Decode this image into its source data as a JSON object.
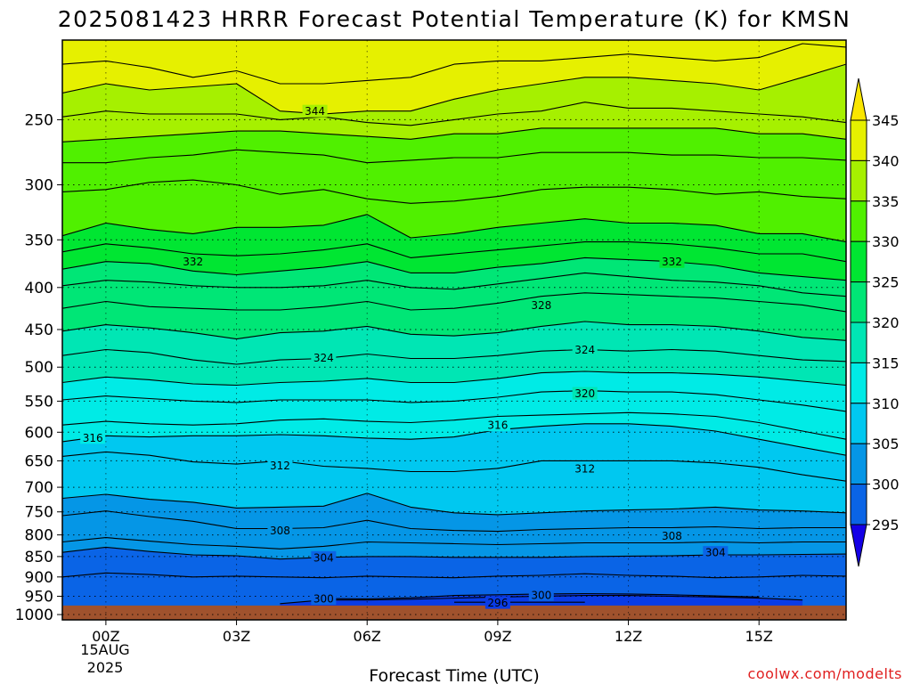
{
  "chart_data": {
    "type": "contour-cross-section",
    "title": "2025081423 HRRR Forecast Potential Temperature (K) for KMSN",
    "xlabel": "Forecast Time (UTC)",
    "x_tick_labels": [
      "00Z",
      "03Z",
      "06Z",
      "09Z",
      "12Z",
      "15Z"
    ],
    "x_tick_hours": [
      0,
      3,
      6,
      9,
      12,
      15
    ],
    "x_date_label": "15AUG",
    "x_year_label": "2025",
    "xlim_hours": [
      -1,
      17
    ],
    "y_tick_labels": [
      "250",
      "300",
      "350",
      "400",
      "450",
      "500",
      "550",
      "600",
      "650",
      "700",
      "750",
      "800",
      "850",
      "900",
      "950",
      "1000"
    ],
    "y_ticks_hpa": [
      250,
      300,
      350,
      400,
      450,
      500,
      550,
      600,
      650,
      700,
      750,
      800,
      850,
      900,
      950,
      1000
    ],
    "ylim_hpa": [
      200,
      1015
    ],
    "y_scale": "log-pressure, inverted",
    "surface_pressure_hpa": 975,
    "contour_interval_K": 2,
    "hours": [
      -1,
      0,
      1,
      2,
      3,
      4,
      5,
      6,
      7,
      8,
      9,
      10,
      11,
      12,
      13,
      14,
      15,
      16,
      17
    ],
    "isentrope_levels_K": [
      296,
      298,
      300,
      302,
      304,
      306,
      308,
      310,
      312,
      314,
      316,
      318,
      320,
      322,
      324,
      326,
      328,
      330,
      332,
      334,
      336,
      338,
      340,
      342,
      344,
      346
    ],
    "isentrope_pressure_hpa": [
      [
        null,
        null,
        null,
        null,
        null,
        null,
        null,
        null,
        null,
        966,
        966,
        966,
        966,
        null,
        null,
        null,
        null,
        null,
        null
      ],
      [
        null,
        null,
        null,
        null,
        null,
        null,
        956,
        957,
        954,
        948,
        946,
        944,
        943,
        944,
        946,
        949,
        952,
        null,
        null
      ],
      [
        null,
        null,
        null,
        null,
        null,
        970,
        960,
        960,
        958,
        955,
        952,
        950,
        948,
        948,
        950,
        952,
        955,
        960,
        null
      ],
      [
        900,
        890,
        894,
        900,
        898,
        900,
        902,
        898,
        900,
        902,
        898,
        896,
        892,
        896,
        898,
        902,
        900,
        896,
        898
      ],
      [
        840,
        828,
        838,
        846,
        848,
        856,
        852,
        850,
        850,
        852,
        852,
        852,
        850,
        849,
        848,
        846,
        846,
        845,
        844
      ],
      [
        816,
        806,
        814,
        822,
        826,
        832,
        826,
        816,
        818,
        820,
        822,
        820,
        818,
        818,
        818,
        816,
        818,
        816,
        816
      ],
      [
        758,
        748,
        760,
        770,
        786,
        786,
        784,
        768,
        786,
        790,
        792,
        788,
        786,
        784,
        784,
        782,
        786,
        784,
        784
      ],
      [
        722,
        714,
        724,
        730,
        742,
        740,
        738,
        712,
        740,
        752,
        756,
        752,
        748,
        746,
        744,
        740,
        746,
        748,
        752
      ],
      [
        642,
        634,
        640,
        652,
        656,
        650,
        660,
        664,
        670,
        670,
        664,
        650,
        650,
        650,
        650,
        654,
        662,
        676,
        688
      ],
      [
        616,
        606,
        608,
        606,
        606,
        604,
        606,
        610,
        612,
        608,
        596,
        590,
        586,
        586,
        590,
        598,
        612,
        626,
        640
      ],
      [
        588,
        582,
        586,
        588,
        586,
        580,
        578,
        582,
        584,
        580,
        574,
        572,
        570,
        568,
        570,
        574,
        584,
        598,
        612
      ],
      [
        548,
        542,
        546,
        550,
        552,
        548,
        548,
        548,
        552,
        550,
        544,
        536,
        534,
        536,
        536,
        540,
        548,
        556,
        566
      ],
      [
        522,
        514,
        518,
        524,
        526,
        522,
        520,
        516,
        522,
        522,
        516,
        508,
        506,
        508,
        508,
        510,
        514,
        520,
        526
      ],
      [
        484,
        476,
        480,
        490,
        496,
        490,
        488,
        482,
        488,
        488,
        484,
        478,
        476,
        478,
        476,
        478,
        484,
        490,
        492
      ],
      [
        452,
        444,
        448,
        454,
        462,
        454,
        452,
        446,
        456,
        458,
        454,
        446,
        440,
        444,
        444,
        446,
        452,
        460,
        464
      ],
      [
        424,
        416,
        422,
        424,
        426,
        426,
        422,
        416,
        426,
        424,
        418,
        410,
        406,
        408,
        410,
        412,
        416,
        420,
        428
      ],
      [
        398,
        392,
        394,
        398,
        400,
        400,
        398,
        392,
        400,
        402,
        396,
        390,
        384,
        388,
        392,
        394,
        398,
        406,
        410
      ],
      [
        380,
        372,
        374,
        382,
        386,
        382,
        378,
        372,
        384,
        384,
        378,
        374,
        368,
        370,
        372,
        376,
        384,
        388,
        392
      ],
      [
        362,
        354,
        358,
        364,
        366,
        364,
        360,
        354,
        368,
        364,
        360,
        356,
        352,
        352,
        354,
        358,
        364,
        364,
        372
      ],
      [
        346,
        334,
        340,
        344,
        338,
        338,
        336,
        326,
        348,
        344,
        338,
        334,
        330,
        334,
        334,
        336,
        344,
        344,
        352
      ],
      [
        306,
        304,
        298,
        296,
        300,
        308,
        304,
        312,
        316,
        314,
        310,
        304,
        302,
        302,
        304,
        308,
        306,
        310,
        312
      ],
      [
        282,
        282,
        278,
        276,
        272,
        274,
        276,
        282,
        280,
        278,
        278,
        274,
        274,
        274,
        276,
        276,
        278,
        278,
        280
      ],
      [
        266,
        264,
        262,
        260,
        258,
        258,
        260,
        262,
        264,
        260,
        260,
        256,
        256,
        256,
        256,
        256,
        260,
        260,
        264
      ],
      [
        248,
        244,
        246,
        246,
        246,
        250,
        248,
        252,
        254,
        250,
        246,
        244,
        238,
        242,
        242,
        244,
        246,
        248,
        252
      ],
      [
        232,
        226,
        230,
        228,
        226,
        244,
        246,
        244,
        244,
        236,
        230,
        226,
        222,
        222,
        224,
        226,
        230,
        222,
        214
      ],
      [
        214,
        212,
        216,
        222,
        218,
        226,
        226,
        224,
        222,
        214,
        212,
        212,
        210,
        208,
        210,
        212,
        210,
        202,
        204
      ]
    ],
    "contour_labels": [
      {
        "text": "344",
        "hour": 4.8,
        "p": 244
      },
      {
        "text": "332",
        "hour": 2.0,
        "p": 372
      },
      {
        "text": "332",
        "hour": 13.0,
        "p": 372
      },
      {
        "text": "328",
        "hour": 10.0,
        "p": 420
      },
      {
        "text": "324",
        "hour": 5.0,
        "p": 487
      },
      {
        "text": "324",
        "hour": 11.0,
        "p": 476
      },
      {
        "text": "320",
        "hour": 11.0,
        "p": 538
      },
      {
        "text": "316",
        "hour": -0.3,
        "p": 609
      },
      {
        "text": "316",
        "hour": 9.0,
        "p": 588
      },
      {
        "text": "312",
        "hour": 4.0,
        "p": 658
      },
      {
        "text": "312",
        "hour": 11.0,
        "p": 664
      },
      {
        "text": "308",
        "hour": 4.0,
        "p": 790
      },
      {
        "text": "308",
        "hour": 13.0,
        "p": 802
      },
      {
        "text": "304",
        "hour": 5.0,
        "p": 852
      },
      {
        "text": "304",
        "hour": 14.0,
        "p": 840
      },
      {
        "text": "300",
        "hour": 5.0,
        "p": 956
      },
      {
        "text": "300",
        "hour": 10.0,
        "p": 946
      },
      {
        "text": "296",
        "hour": 9.0,
        "p": 967
      }
    ],
    "colorbar": {
      "levels": [
        "295",
        "300",
        "305",
        "310",
        "315",
        "320",
        "325",
        "330",
        "335",
        "340",
        "345"
      ],
      "colors": [
        "#1400e6",
        "#0a3ce6",
        "#0a64e6",
        "#0596e6",
        "#00c8f0",
        "#00ebe6",
        "#00e6b4",
        "#00e676",
        "#00e632",
        "#50f000",
        "#a6f000",
        "#e6f000",
        "#fae600"
      ],
      "extend": "both"
    },
    "surface_color": "#a0522d",
    "gridlines": "dotted"
  },
  "credit": "coolwx.com/modelts",
  "credit_color": "#e02020"
}
